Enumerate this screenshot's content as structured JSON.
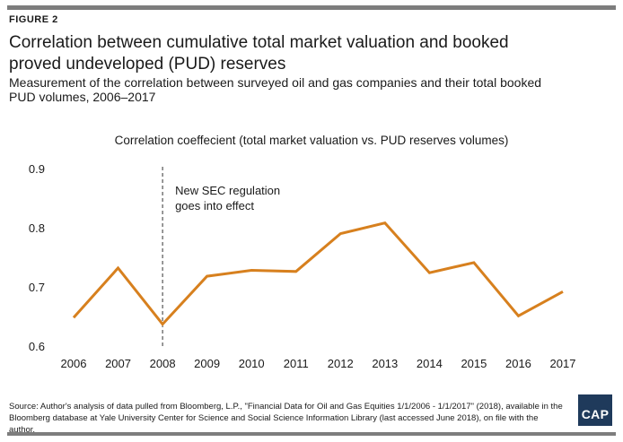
{
  "figure_label": "FIGURE 2",
  "title": "Correlation between cumulative total market valuation and booked proved undeveloped (PUD) reserves",
  "subtitle": "Measurement of the correlation between surveyed oil and gas companies and their total booked PUD volumes, 2006–2017",
  "chart_data": {
    "type": "line",
    "title": "Correlation coeffecient (total market valuation vs. PUD reserves volumes)",
    "x": [
      "2006",
      "2007",
      "2008",
      "2009",
      "2010",
      "2011",
      "2012",
      "2013",
      "2014",
      "2015",
      "2016",
      "2017"
    ],
    "series": [
      {
        "values": [
          0.648,
          0.732,
          0.637,
          0.718,
          0.728,
          0.726,
          0.79,
          0.808,
          0.724,
          0.741,
          0.651,
          0.692
        ]
      }
    ],
    "ylim": [
      0.6,
      0.9
    ],
    "yticks": [
      "0.6",
      "0.7",
      "0.8",
      "0.9"
    ],
    "grid": false,
    "line_color": "#d7801e",
    "annotation": {
      "x": "2008",
      "text_lines": [
        "New SEC regulation",
        "goes into effect"
      ],
      "style": "dashed-vertical-line"
    }
  },
  "source": "Source: Author's analysis of data pulled from Bloomberg, L.P., \"Financial Data for Oil and Gas Equities 1/1/2006 - 1/1/2017\" (2018), available in the Bloomberg database at Yale University Center for Science and Social Science Information Library (last accessed June 2018), on file with the author.",
  "logo_text": "CAP",
  "colors": {
    "rule": "#7d7d7d",
    "line": "#d7801e",
    "logo_bg": "#1f3a5b"
  }
}
